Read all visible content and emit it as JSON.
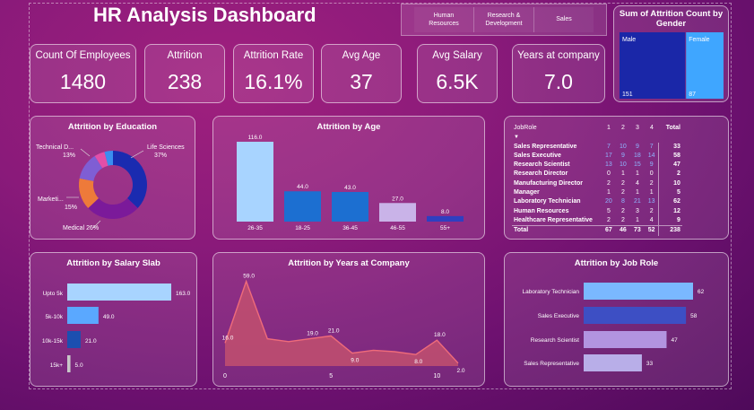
{
  "header": {
    "title": "HR Analysis Dashboard"
  },
  "slicer": {
    "items": [
      {
        "label": "Human\nResources"
      },
      {
        "label": "Research &\nDevelopment"
      },
      {
        "label": "Sales"
      }
    ]
  },
  "kpis": [
    {
      "label": "Count Of Employees",
      "value": "1480"
    },
    {
      "label": "Attrition",
      "value": "238"
    },
    {
      "label": "Attrition Rate",
      "value": "16.1%"
    },
    {
      "label": "Avg Age",
      "value": "37"
    },
    {
      "label": "Avg Salary",
      "value": "6.5K"
    },
    {
      "label": "Years at company",
      "value": "7.0"
    }
  ],
  "colors": {
    "male": "#1a27a8",
    "female": "#3fa6ff",
    "light_blue": "#a8d4ff",
    "mid_blue": "#1c6fd1",
    "lavender": "#c9b3e8",
    "area_line": "#ef6b7a",
    "area_fill": "#c2506e"
  },
  "chart_data": [
    {
      "type": "treemap",
      "title": "Sum of Attrition Count by Gender",
      "categories": [
        "Male",
        "Female"
      ],
      "values": [
        151,
        87
      ]
    },
    {
      "type": "pie",
      "title": "Attrition by Education",
      "labels": [
        "Life Sciences",
        "Medical",
        "Marketi...",
        "Technical D...",
        "",
        ""
      ],
      "values": [
        37,
        26,
        15,
        13,
        5,
        4
      ],
      "label_texts": [
        "Life Sciences\n37%",
        "Medical 26%",
        "Marketi...\n15%",
        "Technical D...\n13%"
      ]
    },
    {
      "type": "bar",
      "title": "Attrition by Age",
      "categories": [
        "26-35",
        "18-25",
        "36-45",
        "46-55",
        "55+"
      ],
      "values": [
        116,
        44,
        43,
        27,
        8
      ],
      "value_labels": [
        "116.0",
        "44.0",
        "43.0",
        "27.0",
        "8.0"
      ]
    },
    {
      "type": "table",
      "title": "JobRole",
      "columns": [
        "JobRole",
        "1",
        "2",
        "3",
        "4",
        "Total"
      ],
      "rows": [
        [
          "Sales Representative",
          "7",
          "10",
          "9",
          "7",
          "33"
        ],
        [
          "Sales Executive",
          "17",
          "9",
          "18",
          "14",
          "58"
        ],
        [
          "Research Scientist",
          "13",
          "10",
          "15",
          "9",
          "47"
        ],
        [
          "Research Director",
          "0",
          "1",
          "1",
          "0",
          "2"
        ],
        [
          "Manufacturing Director",
          "2",
          "2",
          "4",
          "2",
          "10"
        ],
        [
          "Manager",
          "1",
          "2",
          "1",
          "1",
          "5"
        ],
        [
          "Laboratory Technician",
          "20",
          "8",
          "21",
          "13",
          "62"
        ],
        [
          "Human Resources",
          "5",
          "2",
          "3",
          "2",
          "12"
        ],
        [
          "Healthcare Representative",
          "2",
          "2",
          "1",
          "4",
          "9"
        ]
      ],
      "total_row": [
        "Total",
        "67",
        "46",
        "73",
        "52",
        "238"
      ]
    },
    {
      "type": "bar",
      "orientation": "horizontal",
      "title": "Attrition by Salary Slab",
      "categories": [
        "Upto 5k",
        "5k-10k",
        "10k-15k",
        "15k+"
      ],
      "values": [
        163,
        49,
        21,
        5
      ],
      "value_labels": [
        "163.0",
        "49.0",
        "21.0",
        "5.0"
      ]
    },
    {
      "type": "area",
      "title": "Attrition by Years at Company",
      "x": [
        0,
        1,
        2,
        3,
        4,
        5,
        6,
        7,
        8,
        9,
        10,
        11
      ],
      "values": [
        16,
        59,
        19,
        17,
        19,
        21,
        9,
        11,
        10,
        8,
        18,
        2
      ],
      "point_labels": [
        {
          "index": 0,
          "text": "16.0"
        },
        {
          "index": 1,
          "text": "59.0"
        },
        {
          "index": 4,
          "text": "19.0"
        },
        {
          "index": 5,
          "text": "21.0"
        },
        {
          "index": 6,
          "text": "9.0"
        },
        {
          "index": 9,
          "text": "8.0"
        },
        {
          "index": 10,
          "text": "18.0"
        },
        {
          "index": 11,
          "text": "2.0"
        }
      ],
      "x_ticks": [
        "0",
        "5",
        "10"
      ],
      "ylim": [
        0,
        65
      ]
    },
    {
      "type": "bar",
      "orientation": "horizontal",
      "title": "Attrition by Job Role",
      "categories": [
        "Laboratory Technician",
        "Sales Executive",
        "Research Scientist",
        "Sales Representative"
      ],
      "values": [
        62,
        58,
        47,
        33
      ],
      "value_labels": [
        "62",
        "58",
        "47",
        "33"
      ]
    }
  ]
}
